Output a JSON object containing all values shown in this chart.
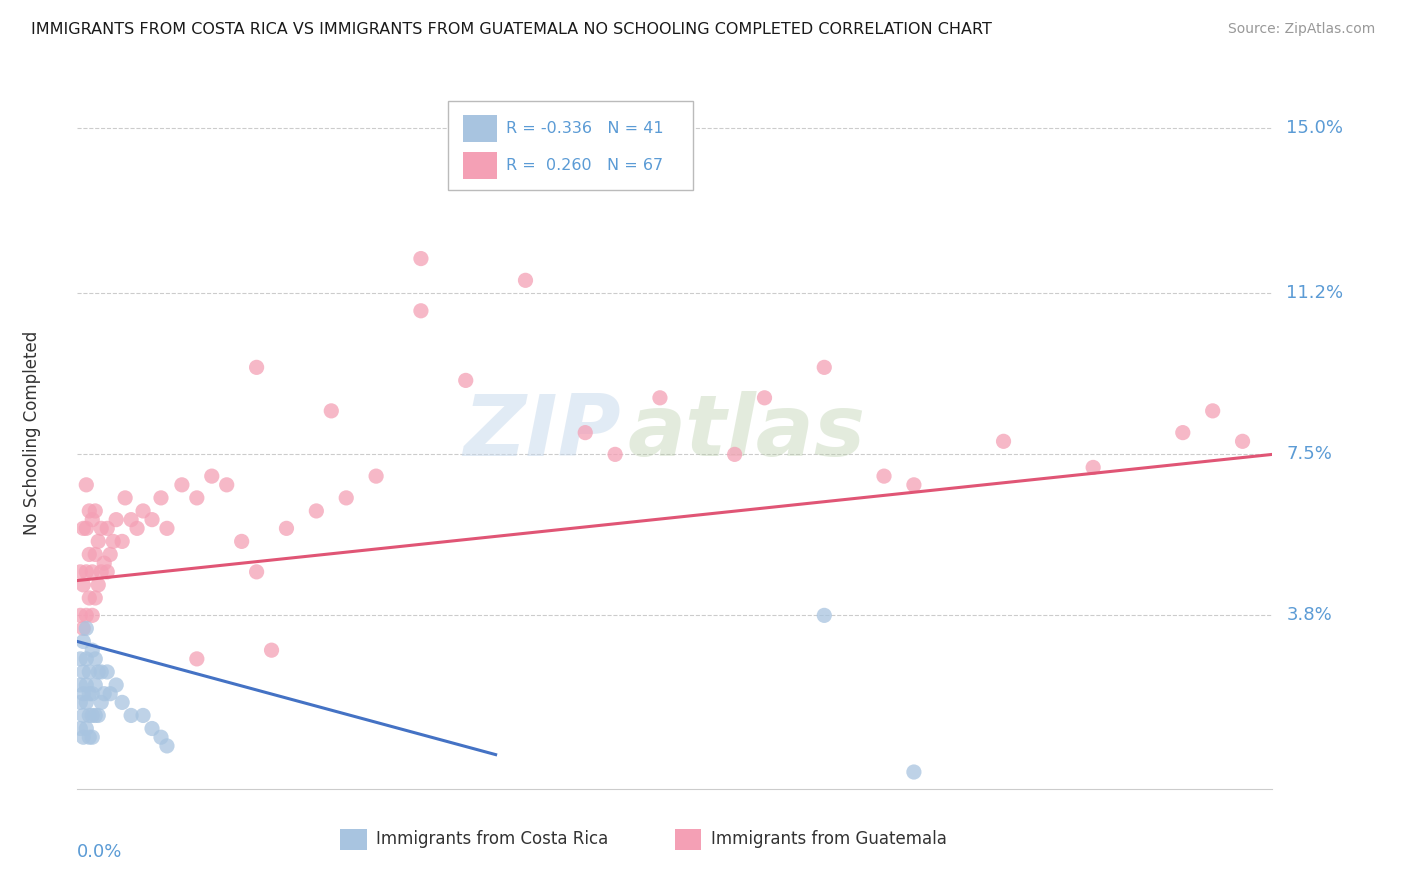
{
  "title": "IMMIGRANTS FROM COSTA RICA VS IMMIGRANTS FROM GUATEMALA NO SCHOOLING COMPLETED CORRELATION CHART",
  "source": "Source: ZipAtlas.com",
  "ylabel": "No Schooling Completed",
  "ytick_labels": [
    "15.0%",
    "11.2%",
    "7.5%",
    "3.8%"
  ],
  "ytick_values": [
    0.15,
    0.112,
    0.075,
    0.038
  ],
  "xlim": [
    0.0,
    0.4
  ],
  "ylim": [
    -0.002,
    0.162
  ],
  "color_cr": "#a8c4e0",
  "color_gt": "#f4a0b5",
  "line_color_cr": "#4472c4",
  "line_color_gt": "#e05575",
  "watermark_zip": "ZIP",
  "watermark_atlas": "atlas",
  "label_cr": "Immigrants from Costa Rica",
  "label_gt": "Immigrants from Guatemala",
  "title_color": "#1a1a1a",
  "source_color": "#999999",
  "axis_label_color": "#5b9bd5",
  "grid_color": "#cccccc",
  "cr_line_x0": 0.0,
  "cr_line_x1": 0.14,
  "cr_line_y0": 0.032,
  "cr_line_y1": 0.006,
  "gt_line_x0": 0.0,
  "gt_line_x1": 0.4,
  "gt_line_y0": 0.046,
  "gt_line_y1": 0.075,
  "costa_rica_x": [
    0.001,
    0.001,
    0.001,
    0.001,
    0.002,
    0.002,
    0.002,
    0.002,
    0.002,
    0.003,
    0.003,
    0.003,
    0.003,
    0.003,
    0.004,
    0.004,
    0.004,
    0.004,
    0.005,
    0.005,
    0.005,
    0.005,
    0.006,
    0.006,
    0.006,
    0.007,
    0.007,
    0.008,
    0.008,
    0.009,
    0.01,
    0.011,
    0.013,
    0.015,
    0.018,
    0.022,
    0.025,
    0.028,
    0.03,
    0.25,
    0.28
  ],
  "costa_rica_y": [
    0.012,
    0.018,
    0.022,
    0.028,
    0.01,
    0.015,
    0.02,
    0.025,
    0.032,
    0.012,
    0.018,
    0.022,
    0.028,
    0.035,
    0.01,
    0.015,
    0.02,
    0.025,
    0.01,
    0.015,
    0.02,
    0.03,
    0.015,
    0.022,
    0.028,
    0.015,
    0.025,
    0.018,
    0.025,
    0.02,
    0.025,
    0.02,
    0.022,
    0.018,
    0.015,
    0.015,
    0.012,
    0.01,
    0.008,
    0.038,
    0.002
  ],
  "guatemala_x": [
    0.001,
    0.001,
    0.002,
    0.002,
    0.002,
    0.003,
    0.003,
    0.003,
    0.003,
    0.004,
    0.004,
    0.004,
    0.005,
    0.005,
    0.005,
    0.006,
    0.006,
    0.006,
    0.007,
    0.007,
    0.008,
    0.008,
    0.009,
    0.01,
    0.01,
    0.011,
    0.012,
    0.013,
    0.015,
    0.016,
    0.018,
    0.02,
    0.022,
    0.025,
    0.028,
    0.03,
    0.035,
    0.04,
    0.045,
    0.05,
    0.055,
    0.06,
    0.065,
    0.07,
    0.08,
    0.09,
    0.1,
    0.115,
    0.13,
    0.15,
    0.17,
    0.195,
    0.22,
    0.25,
    0.28,
    0.31,
    0.34,
    0.37,
    0.38,
    0.39,
    0.115,
    0.18,
    0.23,
    0.27,
    0.085,
    0.06,
    0.04
  ],
  "guatemala_y": [
    0.038,
    0.048,
    0.035,
    0.045,
    0.058,
    0.038,
    0.048,
    0.058,
    0.068,
    0.042,
    0.052,
    0.062,
    0.038,
    0.048,
    0.06,
    0.042,
    0.052,
    0.062,
    0.045,
    0.055,
    0.048,
    0.058,
    0.05,
    0.048,
    0.058,
    0.052,
    0.055,
    0.06,
    0.055,
    0.065,
    0.06,
    0.058,
    0.062,
    0.06,
    0.065,
    0.058,
    0.068,
    0.065,
    0.07,
    0.068,
    0.055,
    0.048,
    0.03,
    0.058,
    0.062,
    0.065,
    0.07,
    0.108,
    0.092,
    0.115,
    0.08,
    0.088,
    0.075,
    0.095,
    0.068,
    0.078,
    0.072,
    0.08,
    0.085,
    0.078,
    0.12,
    0.075,
    0.088,
    0.07,
    0.085,
    0.095,
    0.028
  ]
}
